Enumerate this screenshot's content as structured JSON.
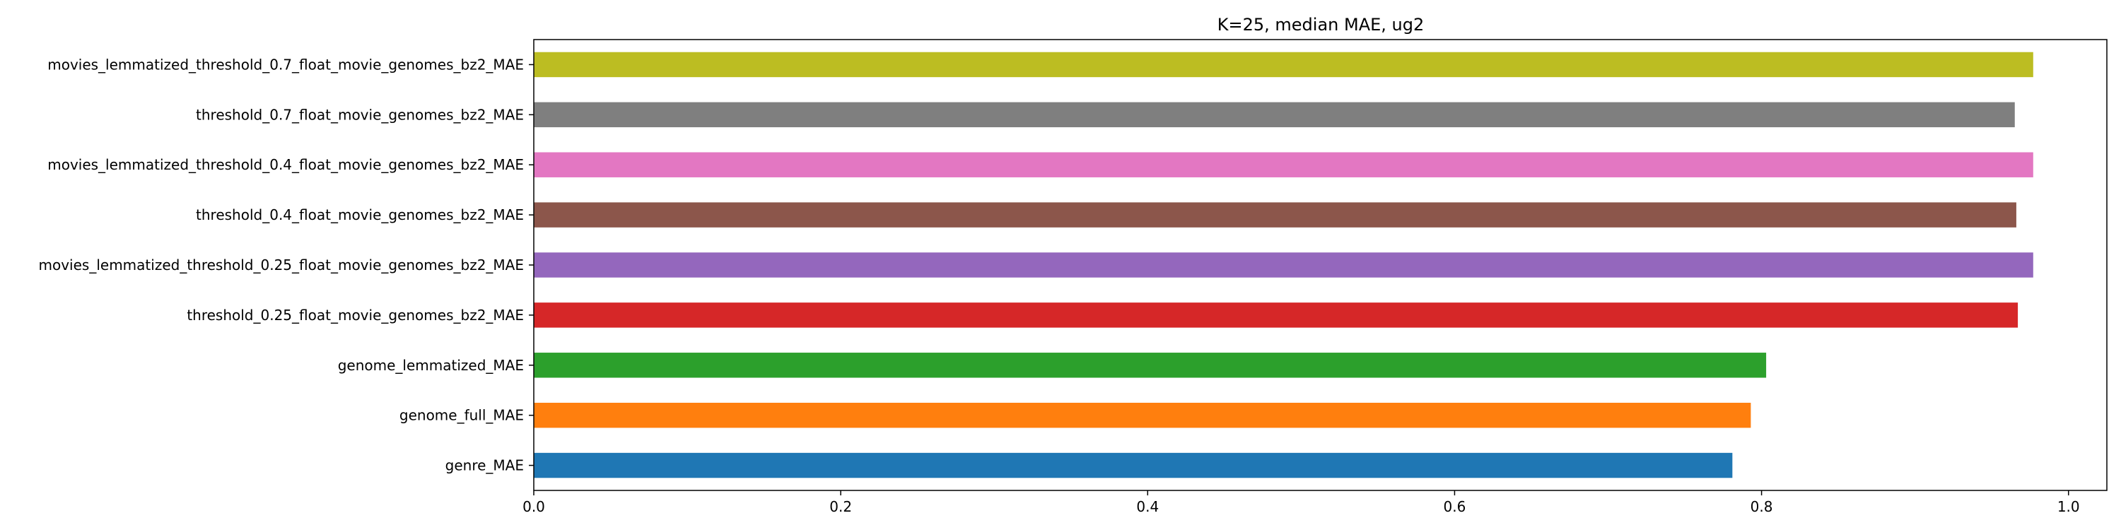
{
  "chart_data": {
    "type": "bar",
    "orientation": "horizontal",
    "title": "K=25, median MAE, ug2",
    "xlabel": "",
    "ylabel": "",
    "xlim": [
      0,
      1.025
    ],
    "xticks": [
      "0.0",
      "0.2",
      "0.4",
      "0.6",
      "0.8",
      "1.0"
    ],
    "grid": false,
    "categories": [
      "genre_MAE",
      "genome_full_MAE",
      "genome_lemmatized_MAE",
      "threshold_0.25_float_movie_genomes_bz2_MAE",
      "movies_lemmatized_threshold_0.25_float_movie_genomes_bz2_MAE",
      "threshold_0.4_float_movie_genomes_bz2_MAE",
      "movies_lemmatized_threshold_0.4_float_movie_genomes_bz2_MAE",
      "threshold_0.7_float_movie_genomes_bz2_MAE",
      "movies_lemmatized_threshold_0.7_float_movie_genomes_bz2_MAE"
    ],
    "values": [
      0.781,
      0.793,
      0.803,
      0.967,
      0.977,
      0.966,
      0.977,
      0.965,
      0.977
    ],
    "colors": [
      "#1f77b4",
      "#ff7f0e",
      "#2ca02c",
      "#d62728",
      "#9467bd",
      "#8c564b",
      "#e377c2",
      "#7f7f7f",
      "#bcbd22"
    ]
  }
}
